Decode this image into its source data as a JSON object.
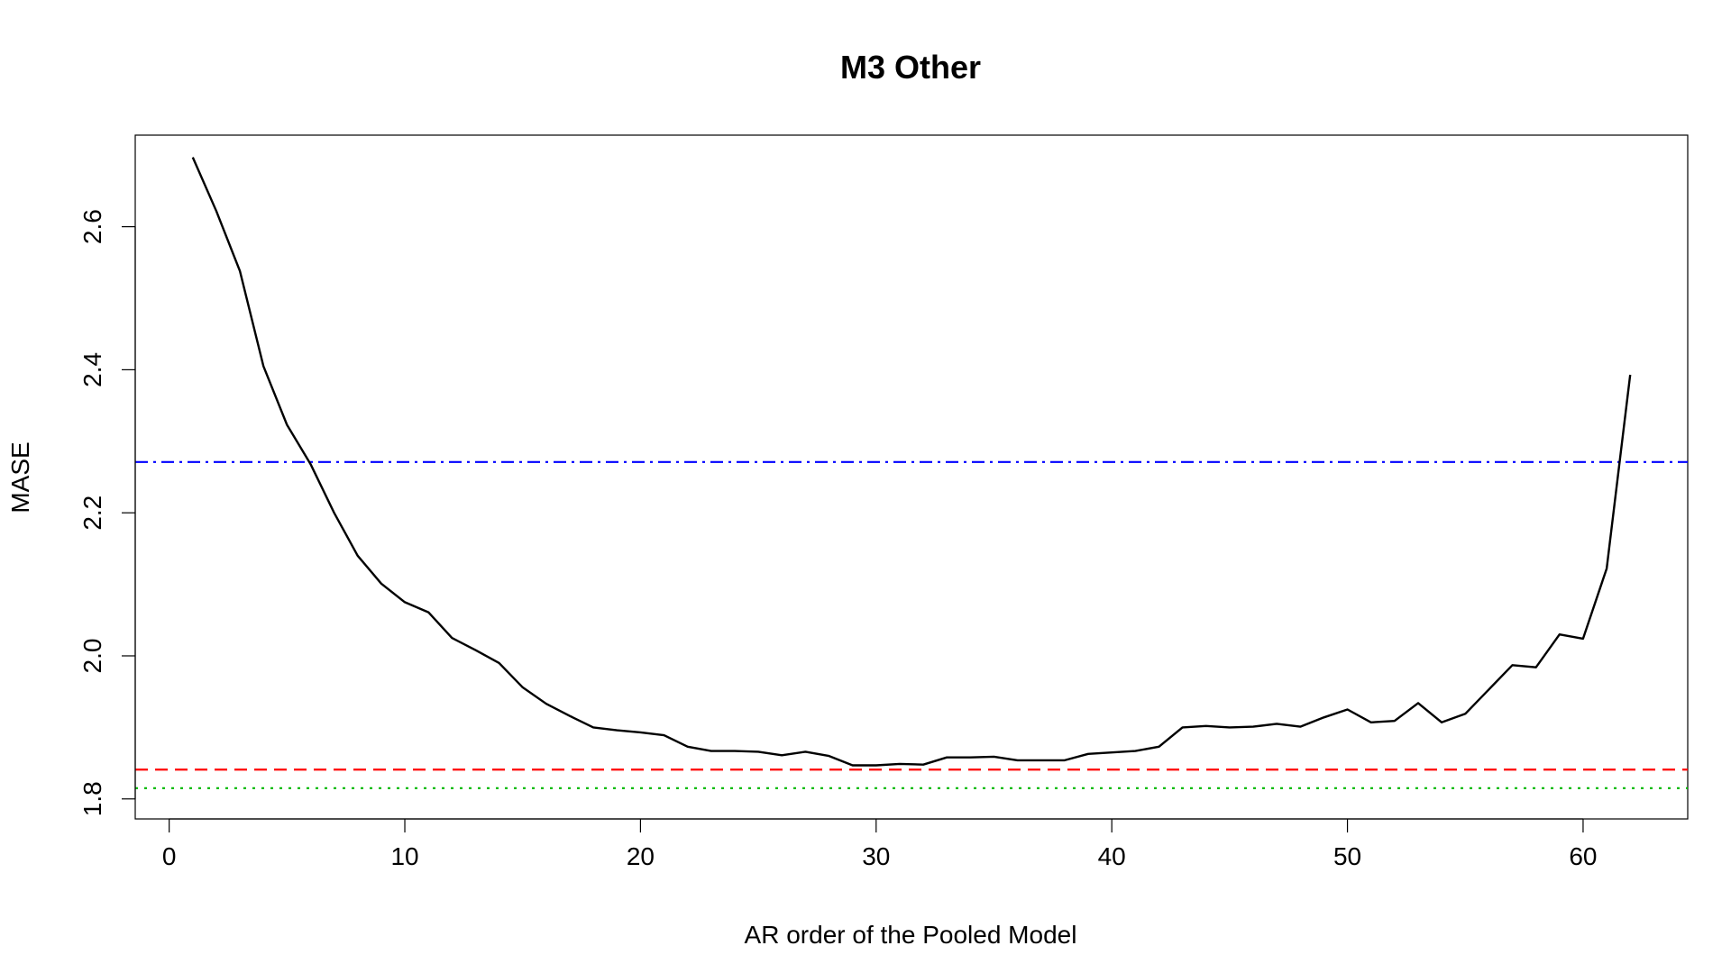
{
  "chart_data": {
    "type": "line",
    "title": "M3 Other",
    "xlabel": "AR order of the Pooled Model",
    "ylabel": "MASE",
    "xlim": [
      -1.44,
      64.44
    ],
    "ylim": [
      1.772,
      2.728
    ],
    "x_ticks": [
      0,
      10,
      20,
      30,
      40,
      50,
      60
    ],
    "y_ticks": [
      1.8,
      2.0,
      2.2,
      2.4,
      2.6
    ],
    "grid": false,
    "legend": "none",
    "series": [
      {
        "style": "solid",
        "color": "#000000",
        "x": [
          1,
          2,
          3,
          4,
          5,
          6,
          7,
          8,
          9,
          10,
          11,
          12,
          13,
          14,
          15,
          16,
          17,
          18,
          19,
          20,
          21,
          22,
          23,
          24,
          25,
          26,
          27,
          28,
          29,
          30,
          31,
          32,
          33,
          34,
          35,
          36,
          37,
          38,
          39,
          40,
          41,
          42,
          43,
          44,
          45,
          46,
          47,
          48,
          49,
          50,
          51,
          52,
          53,
          54,
          55,
          56,
          57,
          58,
          59,
          60,
          61,
          62
        ],
        "values": [
          2.697,
          2.622,
          2.538,
          2.405,
          2.323,
          2.268,
          2.2,
          2.14,
          2.101,
          2.075,
          2.061,
          2.025,
          2.008,
          1.99,
          1.956,
          1.933,
          1.916,
          1.9,
          1.896,
          1.893,
          1.889,
          1.873,
          1.867,
          1.867,
          1.866,
          1.861,
          1.866,
          1.86,
          1.847,
          1.847,
          1.849,
          1.848,
          1.858,
          1.858,
          1.859,
          1.854,
          1.854,
          1.854,
          1.863,
          1.865,
          1.867,
          1.873,
          1.9,
          1.902,
          1.9,
          1.901,
          1.905,
          1.901,
          1.914,
          1.925,
          1.907,
          1.909,
          1.934,
          1.907,
          1.919,
          1.953,
          1.987,
          1.984,
          2.03,
          2.024,
          2.122,
          2.393
        ]
      }
    ],
    "reference_lines": [
      {
        "y": 2.271,
        "color": "#0000ff",
        "style": "dashdot"
      },
      {
        "y": 1.841,
        "color": "#ff0000",
        "style": "dashed"
      },
      {
        "y": 1.815,
        "color": "#00bb00",
        "style": "dotted"
      }
    ]
  }
}
